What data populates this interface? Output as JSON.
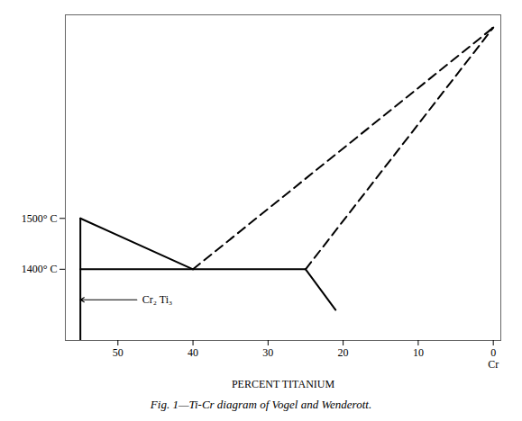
{
  "chart_data": {
    "type": "line",
    "caption": "Fig. 1—Ti-Cr diagram of Vogel and Wenderott.",
    "x_label": "PERCENT TITANIUM",
    "xlim": [
      57,
      -1
    ],
    "xticks": [
      50,
      40,
      30,
      20,
      10,
      0
    ],
    "ylim": [
      1260,
      1900
    ],
    "yticks": [
      {
        "value": 1400,
        "label": "1400° C"
      },
      {
        "value": 1500,
        "label": "1500° C"
      }
    ],
    "grid": false,
    "series": [
      {
        "x": [
          55,
          40
        ],
        "values": [
          1500,
          1400
        ],
        "color": "#000000",
        "line_style": "solid"
      },
      {
        "x": [
          55,
          25
        ],
        "values": [
          1400,
          1400
        ],
        "color": "#000000",
        "line_style": "solid"
      },
      {
        "x": [
          25,
          21
        ],
        "values": [
          1400,
          1320
        ],
        "color": "#000000",
        "line_style": "solid"
      },
      {
        "x": [
          55,
          55
        ],
        "values": [
          1500,
          1260
        ],
        "color": "#000000",
        "line_style": "solid"
      },
      {
        "x": [
          40,
          0
        ],
        "values": [
          1400,
          1875
        ],
        "color": "#000000",
        "line_style": "dashed"
      },
      {
        "x": [
          25,
          0
        ],
        "values": [
          1400,
          1875
        ],
        "color": "#000000",
        "line_style": "dashed"
      }
    ],
    "annotations": [
      {
        "text": "Cr₂ Ti₃",
        "x": 47,
        "y": 1340,
        "arrow_x": 55,
        "arrow_y": 1340
      },
      {
        "text": "Cr",
        "x": 0
      },
      {
        "x": 0.5,
        "y": 1870,
        "arrow_x": 0,
        "arrow_y": 1875
      }
    ]
  }
}
